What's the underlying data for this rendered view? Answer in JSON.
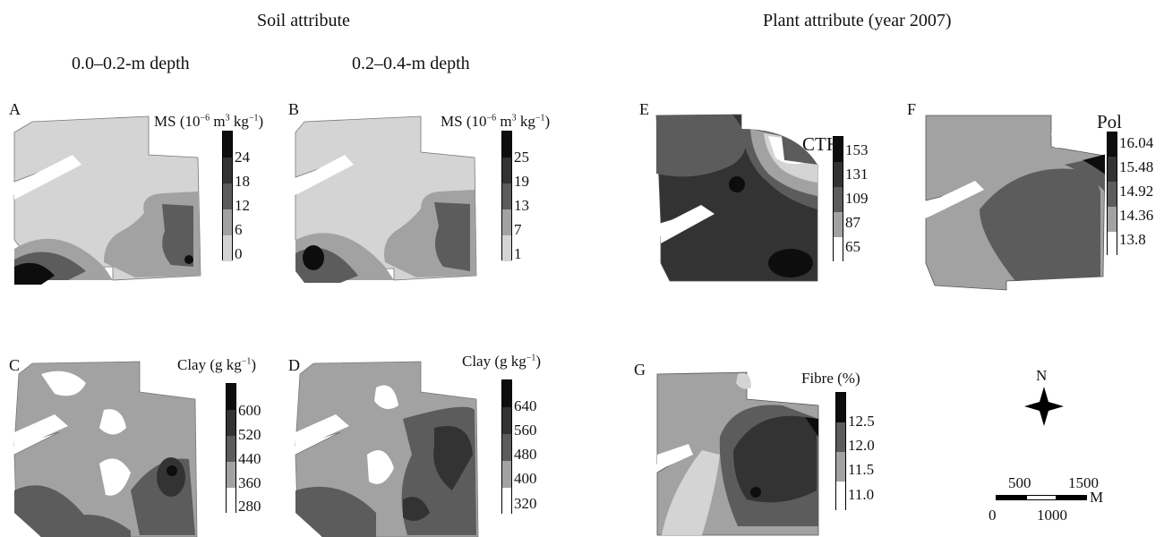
{
  "headers": {
    "soil": "Soil attribute",
    "plant": "Plant attribute (year 2007)",
    "depth_top": "0.0–0.2-m depth",
    "depth_sub": "0.2–0.4-m depth"
  },
  "panels": [
    {
      "id": "A",
      "title": "MS (10<sup>−6</sup> m<sup>3</sup> kg<sup>−1</sup>)",
      "title_text": "MS (10−6 m3 kg−1)",
      "ticks": [
        "24",
        "18",
        "12",
        "6",
        "0"
      ]
    },
    {
      "id": "B",
      "title_text": "MS (10−6 m3 kg−1)",
      "ticks": [
        "25",
        "19",
        "13",
        "7",
        "1"
      ]
    },
    {
      "id": "C",
      "title_text": "Clay (g kg−1)",
      "ticks": [
        "600",
        "520",
        "440",
        "360",
        "280"
      ]
    },
    {
      "id": "D",
      "title_text": "Clay (g kg−1)",
      "ticks": [
        "640",
        "560",
        "480",
        "400",
        "320"
      ]
    },
    {
      "id": "E",
      "title_text": "CTH",
      "ticks": [
        "153",
        "131",
        "109",
        "87",
        "65"
      ]
    },
    {
      "id": "F",
      "title_text": "Pol",
      "ticks": [
        "16.04",
        "15.48",
        "14.92",
        "14.36",
        "13.8"
      ]
    },
    {
      "id": "G",
      "title_text": "Fibre (%)",
      "ticks": [
        "12.5",
        "12.0",
        "11.5",
        "11.0"
      ]
    }
  ],
  "north_label": "N",
  "scale": {
    "top_labels": [
      "500",
      "1500"
    ],
    "bottom_labels": [
      "0",
      "1000"
    ],
    "unit": "M"
  },
  "colors": {
    "white": "#ffffff",
    "light": "#d4d4d4",
    "mid": "#a2a2a2",
    "dark": "#5c5c5c",
    "darker": "#333333",
    "black": "#0d0d0d"
  }
}
